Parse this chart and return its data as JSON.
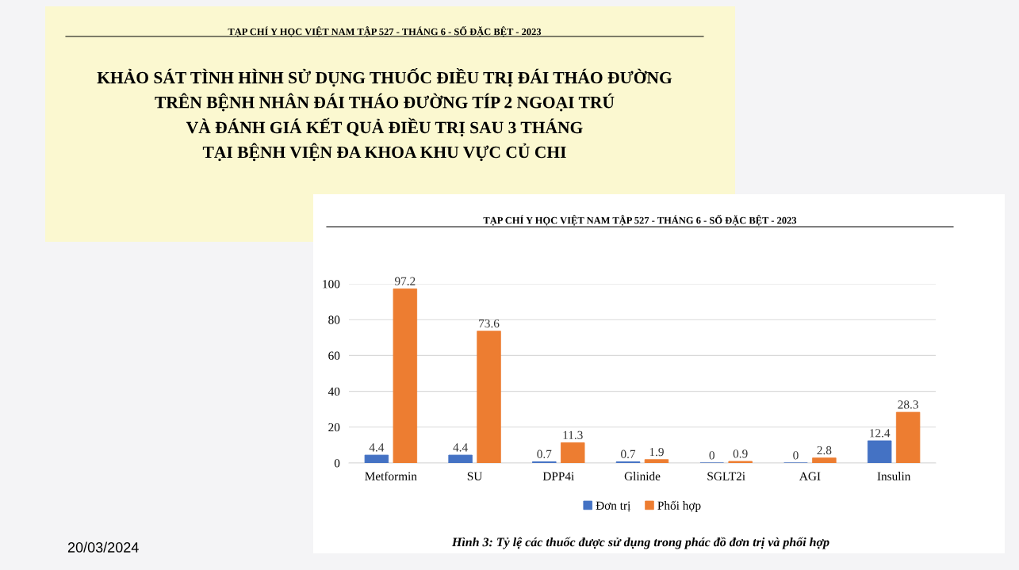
{
  "chart_data": {
    "type": "bar",
    "title": "KHẢO SÁT TÌNH HÌNH SỬ DỤNG THUỐC ĐIỀU TRỊ ĐÁI THÁO ĐƯỜNG\nTRÊN BỆNH NHÂN ĐÁI THÁO ĐƯỜNG TÍP 2 NGOẠI TRÚ\nVÀ ĐÁNH GIÁ KẾT QUẢ ĐIỀU TRỊ SAU 3 THÁNG\nTẠI BỆNH VIỆN ĐA KHOA KHU VỰC CỦ CHI",
    "subtitle": "TẠP CHÍ Y HỌC VIỆT NAM TẬP 527 - THÁNG 6 - SỐ ĐẶC BỆT - 2023",
    "annotations": [
      "TẠP CHÍ Y HỌC VIỆT NAM TẬP 527 - THÁNG 6 - SỐ ĐẶC BỆT - 2023",
      "Hình 3: Tỷ lệ các thuốc được sử dụng trong phác đồ đơn trị và phối hợp",
      "20/03/2024"
    ],
    "categories": [
      "Metformin",
      "SU",
      "DPP4i",
      "Glinide",
      "SGLT2i",
      "AGI",
      "Insulin"
    ],
    "series": [
      {
        "name": "Đơn trị",
        "color": "#4472c4",
        "values": [
          4.4,
          4.4,
          0.7,
          0.7,
          0,
          0,
          12.4
        ]
      },
      {
        "name": "Phối hợp",
        "color": "#ed7d31",
        "values": [
          97.2,
          73.6,
          11.3,
          1.9,
          0.9,
          2.8,
          28.3
        ]
      }
    ],
    "ylim": [
      0,
      100
    ],
    "yticks": [
      0,
      20,
      40,
      60,
      80,
      100
    ],
    "grid": "y",
    "legend": "bottom",
    "data_labels": true
  }
}
